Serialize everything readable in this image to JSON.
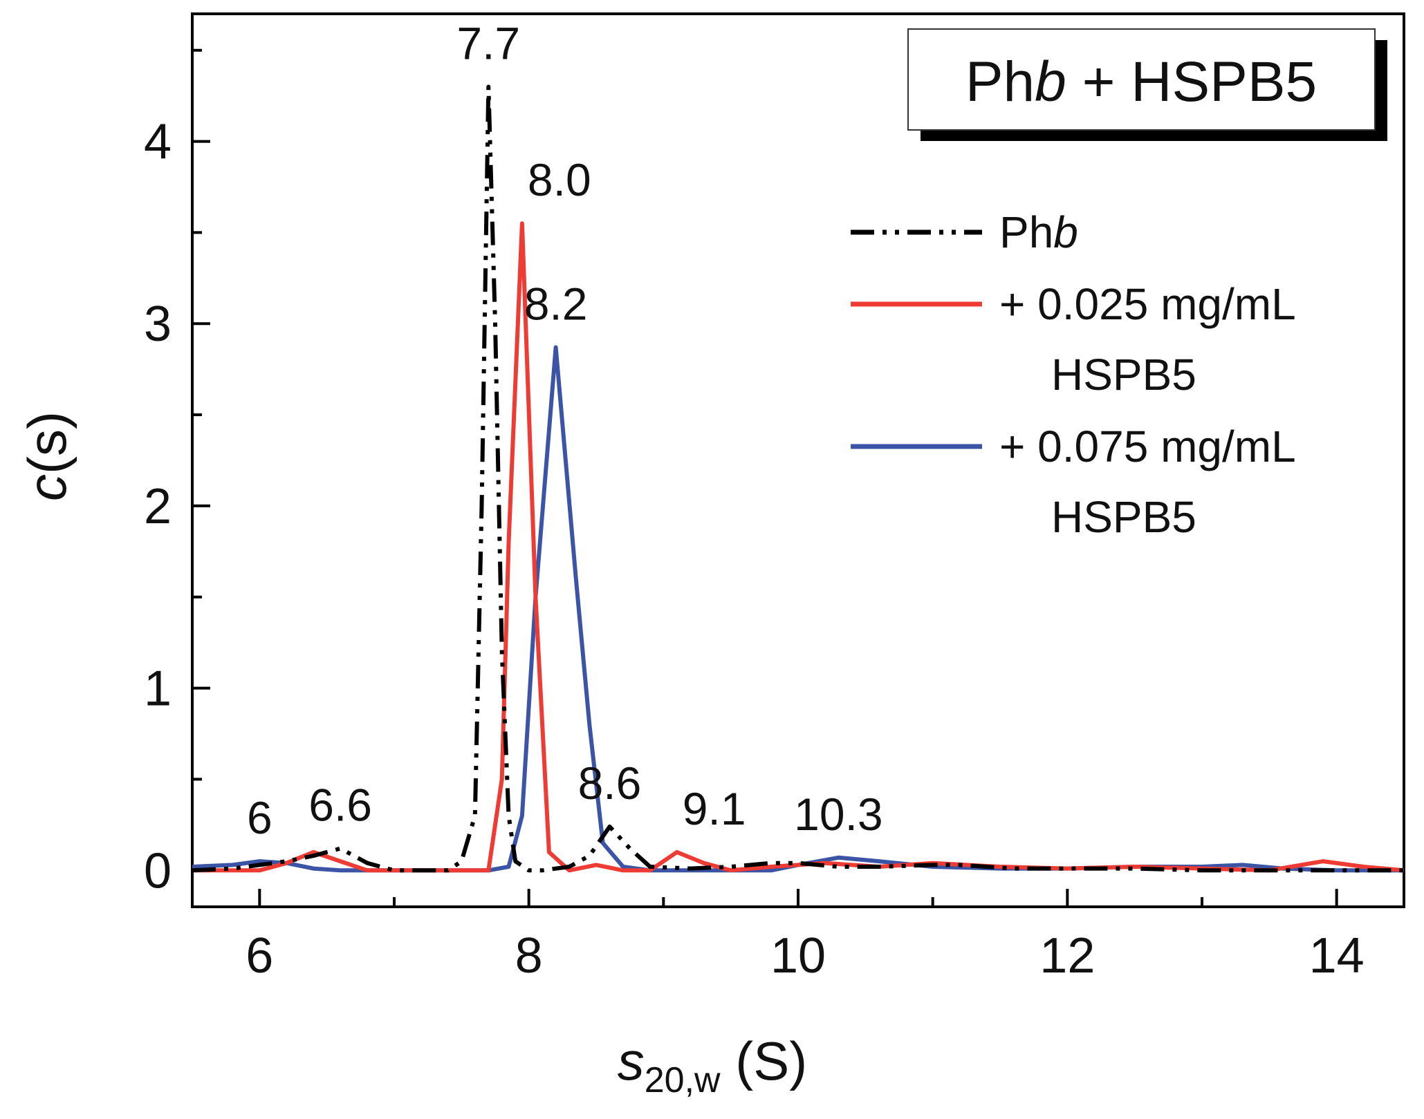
{
  "chart_data": {
    "type": "line",
    "title": "Phb + HSPB5",
    "title_parts": {
      "prefix": "Ph",
      "italic": "b",
      "suffix": " + HSPB5"
    },
    "xlabel": "s20,w (S)",
    "xlabel_parts": {
      "symbol": "s",
      "subscript": "20,w",
      "unit": " (S)"
    },
    "ylabel": "c(s)",
    "ylabel_parts": {
      "italic": "c",
      "rest": "(s)"
    },
    "xlim": [
      5.5,
      14.5
    ],
    "ylim": [
      -0.2,
      4.7
    ],
    "xticks": [
      6,
      8,
      10,
      12,
      14
    ],
    "yticks": [
      0,
      1,
      2,
      3,
      4
    ],
    "xtick_labels": [
      "6",
      "8",
      "10",
      "12",
      "14"
    ],
    "ytick_labels": [
      "0",
      "1",
      "2",
      "3",
      "4"
    ],
    "grid": false,
    "legend_position": "right",
    "series": [
      {
        "name": "Phb",
        "legend_parts": {
          "prefix": "Ph",
          "italic": "b"
        },
        "color": "#000000",
        "style": "dash-dot-dot",
        "x": [
          5.5,
          5.8,
          6.0,
          6.2,
          6.4,
          6.6,
          6.8,
          7.0,
          7.2,
          7.4,
          7.5,
          7.6,
          7.65,
          7.7,
          7.75,
          7.8,
          7.85,
          7.9,
          8.0,
          8.1,
          8.3,
          8.45,
          8.6,
          8.75,
          8.9,
          9.2,
          9.5,
          9.8,
          10.0,
          10.3,
          10.6,
          11.0,
          11.2,
          11.6,
          12.0,
          12.5,
          13.0,
          13.5,
          14.0,
          14.5
        ],
        "values": [
          0,
          0.01,
          0.03,
          0.05,
          0.08,
          0.12,
          0.04,
          0.0,
          0.0,
          0.0,
          0.05,
          0.3,
          2.0,
          4.3,
          3.0,
          1.2,
          0.3,
          0.05,
          0.0,
          0.0,
          0.02,
          0.08,
          0.24,
          0.12,
          0.02,
          0.01,
          0.02,
          0.04,
          0.04,
          0.02,
          0.02,
          0.03,
          0.03,
          0.01,
          0.01,
          0.01,
          0.0,
          0.0,
          0.0,
          0.0
        ]
      },
      {
        "name": "+ 0.025 mg/mL HSPB5",
        "legend_lines": [
          "+ 0.025 mg/mL",
          "HSPB5"
        ],
        "color": "#ee3b34",
        "style": "solid",
        "x": [
          5.5,
          6.0,
          6.2,
          6.4,
          6.6,
          6.8,
          7.0,
          7.2,
          7.4,
          7.6,
          7.7,
          7.8,
          7.85,
          7.95,
          8.05,
          8.15,
          8.3,
          8.5,
          8.7,
          8.9,
          9.1,
          9.3,
          9.5,
          9.8,
          10.2,
          10.6,
          11.0,
          11.5,
          12.0,
          12.5,
          13.0,
          13.5,
          13.9,
          14.2,
          14.5
        ],
        "values": [
          0,
          0.0,
          0.04,
          0.1,
          0.05,
          0.0,
          0.0,
          0.0,
          0.0,
          0.0,
          0.0,
          0.5,
          1.8,
          3.55,
          1.5,
          0.1,
          0.0,
          0.03,
          0.0,
          0.0,
          0.1,
          0.04,
          0.0,
          0.02,
          0.04,
          0.02,
          0.04,
          0.02,
          0.01,
          0.02,
          0.01,
          0.0,
          0.05,
          0.02,
          0.0
        ]
      },
      {
        "name": "+ 0.075 mg/mL HSPB5",
        "legend_lines": [
          "+ 0.075 mg/mL",
          "HSPB5"
        ],
        "color": "#3c54a5",
        "style": "solid",
        "x": [
          5.5,
          5.8,
          6.0,
          6.2,
          6.4,
          6.6,
          6.8,
          7.0,
          7.4,
          7.7,
          7.85,
          7.95,
          8.05,
          8.2,
          8.35,
          8.45,
          8.55,
          8.7,
          8.9,
          9.2,
          9.5,
          9.8,
          10.0,
          10.3,
          10.6,
          11.0,
          11.5,
          12.0,
          12.5,
          13.0,
          13.3,
          13.6,
          14.0,
          14.5
        ],
        "values": [
          0.02,
          0.03,
          0.05,
          0.04,
          0.01,
          0.0,
          0.0,
          0.0,
          0.0,
          0.0,
          0.02,
          0.3,
          1.5,
          2.87,
          1.6,
          0.8,
          0.15,
          0.02,
          0.0,
          0.0,
          0.0,
          0.0,
          0.03,
          0.07,
          0.05,
          0.02,
          0.01,
          0.01,
          0.02,
          0.02,
          0.03,
          0.01,
          0.0,
          0.0
        ]
      }
    ],
    "annotations": [
      {
        "text": "7.7",
        "x": 7.7,
        "y": 4.3,
        "anchor": "middle"
      },
      {
        "text": "8.0",
        "x": 7.95,
        "y": 3.55,
        "anchor": "start"
      },
      {
        "text": "8.2",
        "x": 8.2,
        "y": 2.87,
        "anchor": "middle"
      },
      {
        "text": "8.6",
        "x": 8.6,
        "y": 0.24,
        "anchor": "middle"
      },
      {
        "text": "6",
        "x": 6.0,
        "y": 0.05,
        "anchor": "middle"
      },
      {
        "text": "6.6",
        "x": 6.6,
        "y": 0.12,
        "anchor": "middle"
      },
      {
        "text": "9.1",
        "x": 9.1,
        "y": 0.1,
        "anchor": "start"
      },
      {
        "text": "10.3",
        "x": 10.3,
        "y": 0.07,
        "anchor": "middle"
      }
    ]
  }
}
